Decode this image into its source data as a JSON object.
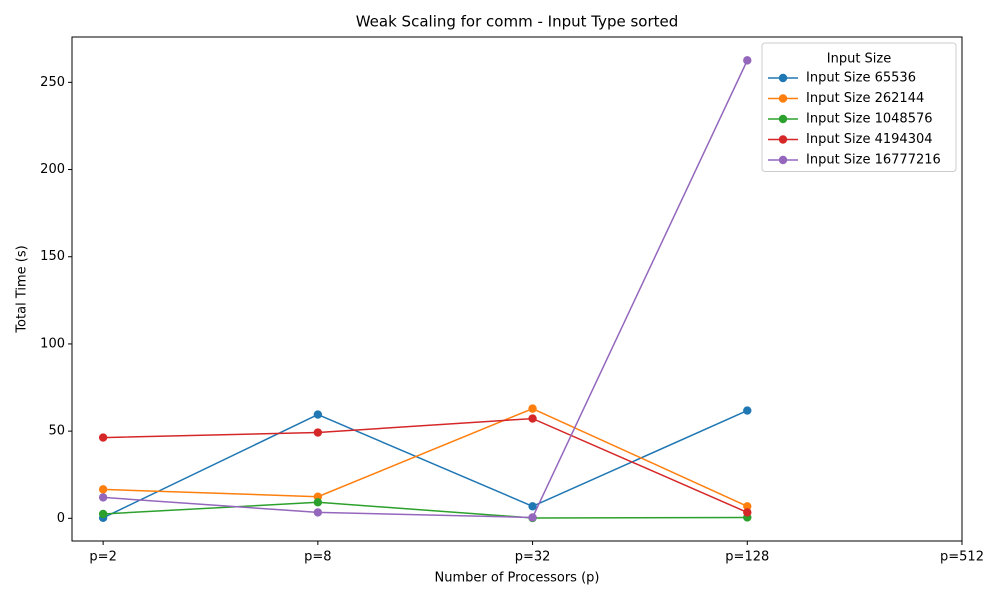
{
  "chart_data": {
    "type": "line",
    "title": "Weak Scaling for comm - Input Type sorted",
    "x_label": "Number of Processors (p)",
    "y_label": "Total Time (s)",
    "categories": [
      "p=2",
      "p=8",
      "p=32",
      "p=128",
      "p=512"
    ],
    "xlim": [
      -0.145,
      4
    ],
    "ylim": [
      -13,
      276
    ],
    "yticks": [
      0,
      50,
      100,
      150,
      200,
      250
    ],
    "legend_title": "Input Size",
    "legend_position": "upper right",
    "series": [
      {
        "name": "Input Size 65536",
        "color": "#1f77b4",
        "values": [
          0.3,
          59.5,
          6.9,
          61.8,
          null
        ]
      },
      {
        "name": "Input Size 262144",
        "color": "#ff7f0e",
        "values": [
          16.6,
          12.4,
          62.9,
          6.9,
          null
        ]
      },
      {
        "name": "Input Size 1048576",
        "color": "#2ca02c",
        "values": [
          2.5,
          9.2,
          0.2,
          0.5,
          null
        ]
      },
      {
        "name": "Input Size 4194304",
        "color": "#d62728",
        "values": [
          46.3,
          49.2,
          57.2,
          3.4,
          null
        ]
      },
      {
        "name": "Input Size 16777216",
        "color": "#9467bd",
        "values": [
          12.0,
          3.4,
          0.5,
          262.6,
          null
        ]
      }
    ]
  }
}
